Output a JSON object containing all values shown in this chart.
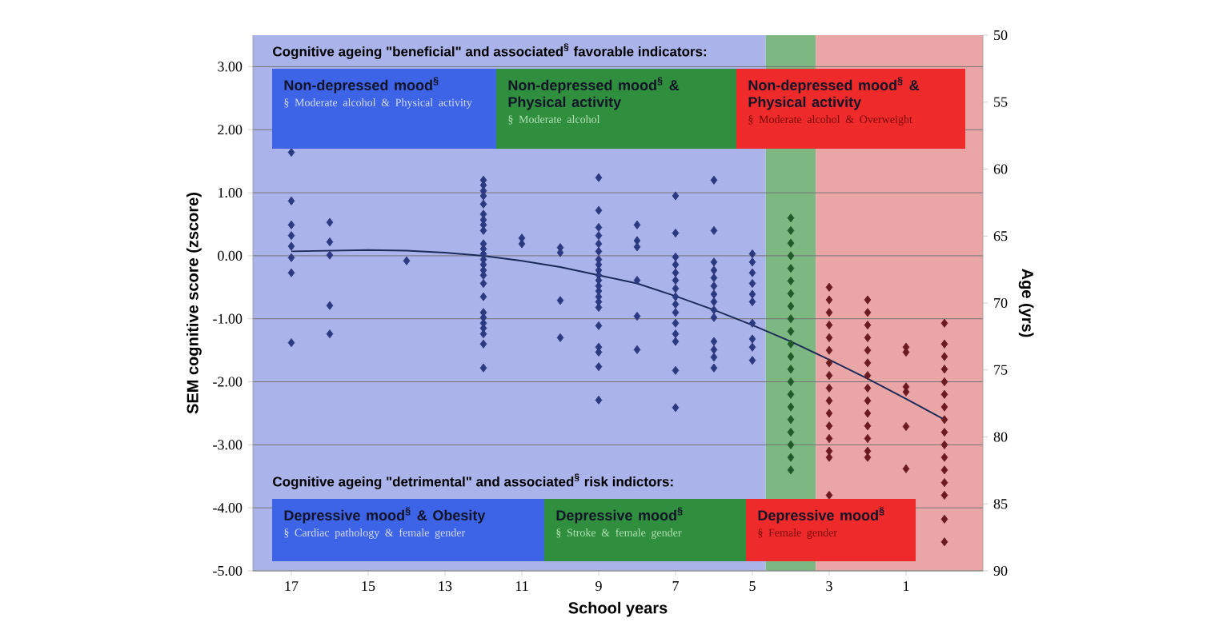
{
  "chart_data": {
    "type": "scatter",
    "xlabel": "School years",
    "ylabel": "SEM cognitive score (zscore)",
    "y2label": "Age (yrs)",
    "xlim": [
      18,
      -1
    ],
    "xticks": [
      17,
      15,
      13,
      11,
      9,
      7,
      5,
      3,
      1
    ],
    "ylim": [
      -5,
      3.5
    ],
    "yticks": [
      {
        "value": -5,
        "label": "-5.00"
      },
      {
        "value": -4,
        "label": "-4.00"
      },
      {
        "value": -3,
        "label": "-3.00"
      },
      {
        "value": -2,
        "label": "-2.00"
      },
      {
        "value": -1,
        "label": "-1.00"
      },
      {
        "value": 0,
        "label": "0.00"
      },
      {
        "value": 1,
        "label": "1.00"
      },
      {
        "value": 2,
        "label": "2.00"
      },
      {
        "value": 3,
        "label": "3.00"
      }
    ],
    "y2lim": [
      90,
      50
    ],
    "y2ticks": [
      50,
      55,
      60,
      65,
      70,
      75,
      80,
      85,
      90
    ],
    "grid": "y",
    "marker": "diamond",
    "bands": [
      {
        "axis": "x",
        "from": 18,
        "to": 4.65,
        "color": "#aab4ea"
      },
      {
        "axis": "x",
        "from": 4.65,
        "to": 3.35,
        "color": "#7db882"
      },
      {
        "axis": "x",
        "from": 3.35,
        "to": -1,
        "color": "#eaa6a6"
      }
    ],
    "series": [
      {
        "color": "#2b3a80",
        "x": [
          17,
          17,
          17,
          17,
          17,
          17,
          17,
          17,
          16,
          16,
          16,
          16,
          16,
          14,
          12,
          12,
          12,
          12,
          12,
          12,
          12,
          12,
          12,
          12,
          12,
          12,
          12,
          12,
          12,
          12,
          12,
          12,
          12,
          12,
          12,
          12,
          12,
          12,
          12,
          11,
          11,
          10,
          10,
          10,
          10,
          9,
          9,
          9,
          9,
          9,
          9,
          9,
          9,
          9,
          9,
          9,
          9,
          9,
          9,
          9,
          9,
          9,
          9,
          9,
          9,
          9,
          8,
          8,
          8,
          8,
          8,
          8,
          7,
          7,
          7,
          7,
          7,
          7,
          7,
          7,
          7,
          7,
          7,
          7,
          7,
          7,
          7,
          6,
          6,
          6,
          6,
          6,
          6,
          6,
          6,
          6,
          6,
          6,
          6,
          6,
          6,
          5,
          5,
          5,
          5,
          5,
          5,
          5,
          5,
          5,
          5
        ],
        "values": [
          1.64,
          0.87,
          0.49,
          0.32,
          0.15,
          -0.03,
          -0.27,
          -1.38,
          0.53,
          0.22,
          0.01,
          -0.79,
          -1.24,
          -0.08,
          1.2,
          1.12,
          1.03,
          0.95,
          0.82,
          0.66,
          0.57,
          0.49,
          0.4,
          0.19,
          0.11,
          0.03,
          -0.06,
          -0.14,
          -0.23,
          -0.31,
          -0.44,
          -0.65,
          -0.9,
          -0.98,
          -1.07,
          -1.15,
          -1.24,
          -1.4,
          -1.78,
          0.28,
          0.19,
          0.13,
          0.05,
          -0.71,
          -1.3,
          1.24,
          0.72,
          0.45,
          0.32,
          0.19,
          0.07,
          -0.06,
          -0.14,
          -0.23,
          -0.31,
          -0.39,
          -0.48,
          -0.56,
          -0.65,
          -0.73,
          -0.82,
          -1.11,
          -1.45,
          -1.53,
          -1.76,
          -2.29,
          0.49,
          0.24,
          0.14,
          -0.39,
          -0.96,
          -1.49,
          0.95,
          0.36,
          -0.02,
          -0.14,
          -0.27,
          -0.39,
          -0.52,
          -0.65,
          -0.77,
          -0.9,
          -1.07,
          -1.24,
          -1.36,
          -1.82,
          -2.41,
          1.2,
          0.4,
          -0.1,
          -0.23,
          -0.35,
          -0.48,
          -0.61,
          -0.73,
          -0.86,
          -0.98,
          -1.36,
          -1.49,
          -1.61,
          -1.78,
          0.03,
          -0.1,
          -0.27,
          -0.44,
          -0.61,
          -0.73,
          -1.07,
          -1.32,
          -1.45,
          -1.66
        ]
      },
      {
        "color": "#1f5a2a",
        "x": [
          4,
          4,
          4,
          4,
          4,
          4,
          4,
          4,
          4,
          4,
          4,
          4,
          4,
          4,
          4,
          4,
          4,
          4,
          4,
          4,
          4
        ],
        "values": [
          0.6,
          0.4,
          0.2,
          0,
          -0.2,
          -0.4,
          -0.6,
          -0.8,
          -1,
          -1.2,
          -1.4,
          -1.6,
          -1.8,
          -2,
          -2.2,
          -2.4,
          -2.6,
          -2.8,
          -3,
          -3.2,
          -3.4
        ]
      },
      {
        "color": "#6b1a1f",
        "x": [
          3,
          3,
          3,
          3,
          3,
          3,
          3,
          3,
          3,
          3,
          3,
          3,
          3,
          3,
          3,
          3,
          2,
          2,
          2,
          2,
          2,
          2,
          2,
          2,
          2,
          2,
          2,
          2,
          2,
          2,
          1,
          1,
          1,
          1,
          1,
          1,
          0,
          0,
          0,
          0,
          0,
          0,
          0,
          0,
          0,
          0,
          0,
          0,
          0,
          0,
          0,
          0
        ],
        "values": [
          -0.5,
          -0.7,
          -0.9,
          -1.1,
          -1.3,
          -1.5,
          -1.7,
          -1.9,
          -2.1,
          -2.3,
          -2.5,
          -2.7,
          -2.9,
          -3.1,
          -3.2,
          -3.8,
          -0.7,
          -0.9,
          -1.1,
          -1.3,
          -1.5,
          -1.7,
          -1.9,
          -2.1,
          -2.3,
          -2.5,
          -2.7,
          -2.9,
          -3.1,
          -3.2,
          -1.45,
          -1.53,
          -2.08,
          -2.16,
          -2.71,
          -3.38,
          -1.07,
          -1.4,
          -1.6,
          -1.8,
          -2,
          -2.2,
          -2.4,
          -2.6,
          -2.8,
          -3,
          -3.2,
          -3.4,
          -3.6,
          -3.8,
          -4.18,
          -4.54
        ]
      },
      {
        "type": "line",
        "color": "#1c2a5a",
        "marker": "none",
        "x": [
          17,
          15,
          14,
          13,
          12,
          11,
          10,
          9,
          8,
          7,
          6,
          5,
          4,
          3,
          2,
          1,
          0
        ],
        "values": [
          0.07,
          0.09,
          0.08,
          0.05,
          0,
          -0.08,
          -0.18,
          -0.31,
          -0.44,
          -0.64,
          -0.86,
          -1.1,
          -1.36,
          -1.65,
          -1.95,
          -2.27,
          -2.6
        ]
      }
    ],
    "annotations": [
      "Cognitive ageing \"beneficial\" and associated$^{§}$ favorable indicators:",
      "Non-depressed mood$^{§}$",
      "§ Moderate alcohol & Physical activity",
      "Non-depressed mood$^{§}$ & Physical activity",
      "§ Moderate alcohol",
      "Non-depressed mood$^{§}$ & Physical activity",
      "§ Moderate alcohol & Overweight",
      "Cognitive ageing \"detrimental\" and associated$^{§}$ risk indictors:",
      "Depressive mood$^{§}$ & Obesity",
      "§ Cardiac pathology & female gender",
      "Depressive mood$^{§}$",
      "§ Stroke & female gender",
      "Depressive mood$^{§}$",
      "§ Female gender"
    ]
  }
}
